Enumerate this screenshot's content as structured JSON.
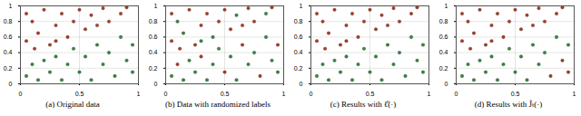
{
  "chart_data": [
    {
      "type": "scatter",
      "title": "(a) Original data",
      "xlim": [
        0,
        1
      ],
      "ylim": [
        0,
        1
      ],
      "xticks": [
        0,
        0.5,
        1
      ],
      "yticks": [
        0,
        0.2,
        0.4,
        0.6,
        0.8,
        1
      ],
      "grid": true,
      "series": [
        {
          "color": "#b03a1e",
          "x": [
            0.05,
            0.1,
            0.15,
            0.2,
            0.25,
            0.3,
            0.35,
            0.4,
            0.45,
            0.5,
            0.55,
            0.6,
            0.65,
            0.7,
            0.75,
            0.85,
            0.9,
            0.12,
            0.3,
            0.05
          ],
          "y": [
            0.55,
            0.8,
            0.65,
            0.95,
            0.5,
            0.75,
            0.9,
            0.6,
            0.8,
            0.95,
            0.7,
            0.88,
            0.75,
            0.97,
            0.8,
            0.9,
            0.98,
            0.45,
            0.55,
            0.9
          ]
        },
        {
          "color": "#2e8b3e",
          "x": [
            0.05,
            0.1,
            0.15,
            0.2,
            0.25,
            0.3,
            0.35,
            0.4,
            0.45,
            0.5,
            0.55,
            0.6,
            0.65,
            0.7,
            0.75,
            0.8,
            0.85,
            0.9,
            0.95,
            0.95
          ],
          "y": [
            0.1,
            0.25,
            0.05,
            0.3,
            0.15,
            0.35,
            0.05,
            0.25,
            0.45,
            0.15,
            0.35,
            0.05,
            0.5,
            0.25,
            0.4,
            0.1,
            0.6,
            0.3,
            0.5,
            0.15
          ]
        }
      ]
    },
    {
      "type": "scatter",
      "title": "(b) Data with randomized labels",
      "xlim": [
        0,
        1
      ],
      "ylim": [
        0,
        1
      ],
      "xticks": [
        0,
        0.5,
        1
      ],
      "yticks": [
        0,
        0.2,
        0.4,
        0.6,
        0.8,
        1
      ],
      "grid": true,
      "series": [
        {
          "color": "#b03a1e",
          "x": [
            0.05,
            0.2,
            0.25,
            0.3,
            0.35,
            0.45,
            0.5,
            0.55,
            0.65,
            0.7,
            0.75,
            0.9,
            0.12,
            0.05,
            0.1,
            0.3,
            0.5,
            0.65,
            0.8,
            0.95
          ],
          "y": [
            0.55,
            0.95,
            0.5,
            0.75,
            0.9,
            0.8,
            0.95,
            0.7,
            0.75,
            0.97,
            0.8,
            0.98,
            0.45,
            0.9,
            0.25,
            0.35,
            0.15,
            0.5,
            0.1,
            0.5
          ]
        },
        {
          "color": "#2e8b3e",
          "x": [
            0.05,
            0.15,
            0.2,
            0.25,
            0.35,
            0.4,
            0.45,
            0.55,
            0.6,
            0.7,
            0.75,
            0.85,
            0.9,
            0.95,
            0.1,
            0.15,
            0.4,
            0.6,
            0.85,
            0.3
          ],
          "y": [
            0.1,
            0.05,
            0.3,
            0.15,
            0.05,
            0.25,
            0.45,
            0.35,
            0.05,
            0.25,
            0.4,
            0.6,
            0.3,
            0.15,
            0.8,
            0.65,
            0.6,
            0.88,
            0.9,
            0.55
          ]
        }
      ]
    },
    {
      "type": "scatter",
      "title": "(c) Results with ℓ̂(·)",
      "xlim": [
        0,
        1
      ],
      "ylim": [
        0,
        1
      ],
      "xticks": [
        0,
        0.5,
        1
      ],
      "yticks": [
        0,
        0.2,
        0.4,
        0.6,
        0.8,
        1
      ],
      "grid": true,
      "series": [
        {
          "color": "#b03a1e",
          "x": [
            0.05,
            0.1,
            0.15,
            0.2,
            0.25,
            0.3,
            0.35,
            0.4,
            0.45,
            0.5,
            0.55,
            0.6,
            0.65,
            0.7,
            0.75,
            0.85,
            0.9,
            0.12,
            0.3,
            0.05
          ],
          "y": [
            0.55,
            0.8,
            0.65,
            0.95,
            0.5,
            0.75,
            0.9,
            0.6,
            0.8,
            0.95,
            0.7,
            0.88,
            0.75,
            0.97,
            0.8,
            0.9,
            0.98,
            0.45,
            0.55,
            0.9
          ]
        },
        {
          "color": "#2e8b3e",
          "x": [
            0.05,
            0.1,
            0.15,
            0.2,
            0.25,
            0.3,
            0.35,
            0.4,
            0.45,
            0.5,
            0.55,
            0.6,
            0.65,
            0.7,
            0.75,
            0.8,
            0.85,
            0.9,
            0.95,
            0.95
          ],
          "y": [
            0.1,
            0.25,
            0.05,
            0.3,
            0.15,
            0.35,
            0.05,
            0.25,
            0.45,
            0.15,
            0.35,
            0.05,
            0.5,
            0.25,
            0.4,
            0.1,
            0.6,
            0.3,
            0.5,
            0.15
          ]
        }
      ]
    },
    {
      "type": "scatter",
      "title": "(d) Results with J̃ₜ(·)",
      "xlim": [
        0,
        1
      ],
      "ylim": [
        0,
        1
      ],
      "xticks": [
        0,
        0.5,
        1
      ],
      "yticks": [
        0,
        0.2,
        0.4,
        0.6,
        0.8,
        1
      ],
      "grid": true,
      "series": [
        {
          "color": "#b03a1e",
          "x": [
            0.05,
            0.1,
            0.15,
            0.2,
            0.25,
            0.3,
            0.35,
            0.4,
            0.45,
            0.5,
            0.55,
            0.6,
            0.65,
            0.7,
            0.75,
            0.85,
            0.9,
            0.12,
            0.3,
            0.05,
            0.8,
            0.9,
            0.95
          ],
          "y": [
            0.55,
            0.8,
            0.65,
            0.95,
            0.5,
            0.75,
            0.9,
            0.6,
            0.8,
            0.95,
            0.7,
            0.88,
            0.75,
            0.97,
            0.8,
            0.9,
            0.98,
            0.45,
            0.55,
            0.9,
            0.1,
            0.3,
            0.15
          ]
        },
        {
          "color": "#2e8b3e",
          "x": [
            0.05,
            0.1,
            0.15,
            0.2,
            0.25,
            0.3,
            0.35,
            0.4,
            0.45,
            0.5,
            0.55,
            0.6,
            0.65,
            0.7,
            0.75,
            0.85,
            0.95
          ],
          "y": [
            0.1,
            0.25,
            0.05,
            0.3,
            0.15,
            0.35,
            0.05,
            0.25,
            0.45,
            0.15,
            0.35,
            0.05,
            0.5,
            0.25,
            0.4,
            0.6,
            0.5
          ]
        }
      ]
    }
  ]
}
